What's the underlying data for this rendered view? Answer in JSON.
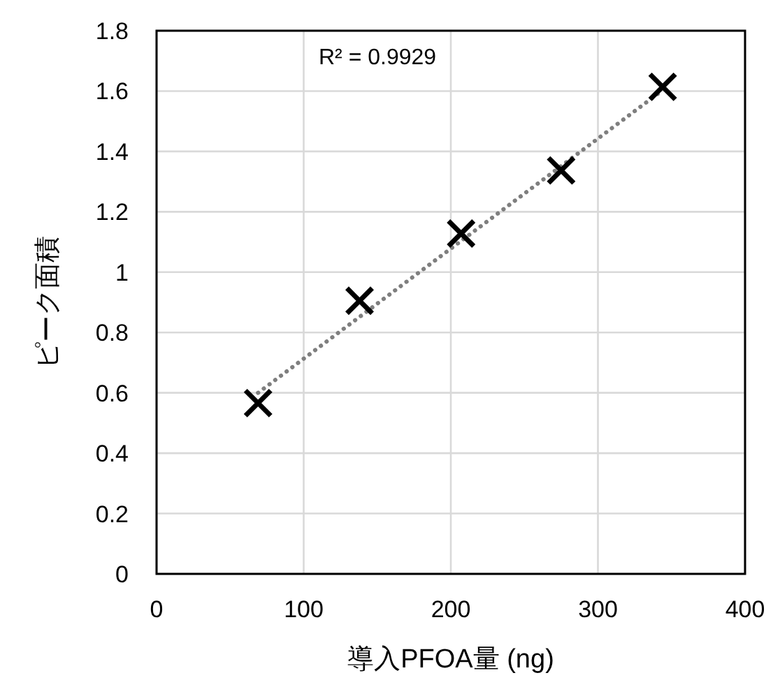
{
  "chart_data": {
    "type": "scatter",
    "xlabel": "導入PFOA量 (ng)",
    "ylabel": "ピーク面積",
    "series": [
      {
        "color": "#000000",
        "marker": "cross",
        "x": [
          69,
          138,
          207,
          275,
          344
        ],
        "values": [
          0.566,
          0.905,
          1.128,
          1.337,
          1.614
        ]
      },
      {
        "type": "line",
        "color": "#7f7f7f",
        "line_style": "dotted",
        "x": [
          69,
          344
        ],
        "values": [
          0.6,
          1.603
        ]
      }
    ],
    "annotations": [
      "R² = 0.9929"
    ],
    "xlim": [
      0,
      400
    ],
    "xticks": [
      0,
      100,
      200,
      300,
      400
    ],
    "ylim": [
      0,
      1.8
    ],
    "yticks": [
      0,
      0.2,
      0.4,
      0.6,
      0.8,
      1,
      1.2,
      1.4,
      1.6,
      1.8
    ],
    "grid": true
  }
}
